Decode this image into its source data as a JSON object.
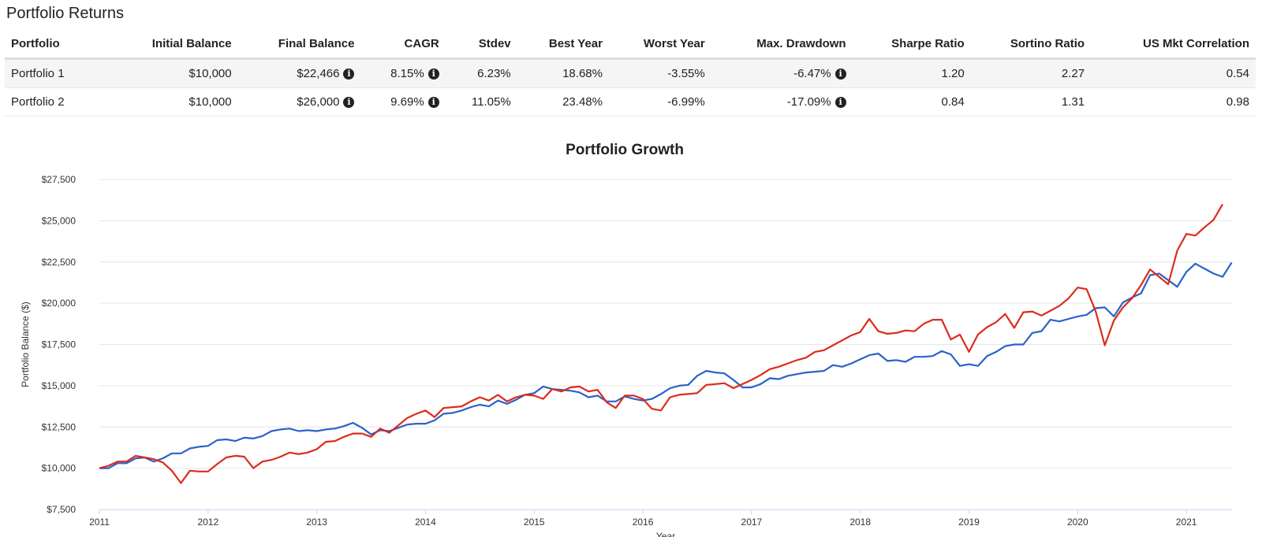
{
  "returns": {
    "title": "Portfolio Returns",
    "columns": [
      "Portfolio",
      "Initial Balance",
      "Final Balance",
      "CAGR",
      "Stdev",
      "Best Year",
      "Worst Year",
      "Max. Drawdown",
      "Sharpe Ratio",
      "Sortino Ratio",
      "US Mkt Correlation"
    ],
    "rows": [
      {
        "portfolio": "Portfolio 1",
        "initial_balance": "$10,000",
        "final_balance": "$22,466",
        "cagr": "8.15%",
        "stdev": "6.23%",
        "best_year": "18.68%",
        "worst_year": "-3.55%",
        "max_drawdown": "-6.47%",
        "sharpe_ratio": "1.20",
        "sortino_ratio": "2.27",
        "us_mkt_correlation": "0.54"
      },
      {
        "portfolio": "Portfolio 2",
        "initial_balance": "$10,000",
        "final_balance": "$26,000",
        "cagr": "9.69%",
        "stdev": "11.05%",
        "best_year": "23.48%",
        "worst_year": "-6.99%",
        "max_drawdown": "-17.09%",
        "sharpe_ratio": "0.84",
        "sortino_ratio": "1.31",
        "us_mkt_correlation": "0.98"
      }
    ],
    "info_icon": "info-circle-icon"
  },
  "chart_data": {
    "type": "line",
    "title": "Portfolio Growth",
    "xlabel": "Year",
    "ylabel": "Portfolio Balance ($)",
    "xlim": [
      2011,
      2021.42
    ],
    "ylim": [
      7500,
      27500
    ],
    "x_ticks": [
      2011,
      2012,
      2013,
      2014,
      2015,
      2016,
      2017,
      2018,
      2019,
      2020,
      2021
    ],
    "y_ticks": [
      7500,
      10000,
      12500,
      15000,
      17500,
      20000,
      22500,
      25000,
      27500
    ],
    "y_tick_labels": [
      "$7,500",
      "$10,000",
      "$12,500",
      "$15,000",
      "$17,500",
      "$20,000",
      "$22,500",
      "$25,000",
      "$27,500"
    ],
    "x_start": 2011,
    "x_step_years": 0.08333,
    "grid": true,
    "series": [
      {
        "color": "#2a62c9",
        "values": [
          10000,
          10000,
          10300,
          10300,
          10600,
          10650,
          10400,
          10600,
          10900,
          10900,
          11200,
          11300,
          11350,
          11700,
          11750,
          11650,
          11850,
          11800,
          11950,
          12250,
          12350,
          12400,
          12250,
          12300,
          12250,
          12350,
          12400,
          12550,
          12750,
          12450,
          12050,
          12300,
          12250,
          12450,
          12650,
          12700,
          12700,
          12900,
          13300,
          13350,
          13500,
          13700,
          13850,
          13750,
          14100,
          13900,
          14150,
          14450,
          14550,
          14950,
          14800,
          14750,
          14700,
          14600,
          14300,
          14400,
          14050,
          14050,
          14350,
          14200,
          14100,
          14200,
          14500,
          14850,
          15000,
          15050,
          15600,
          15900,
          15800,
          15750,
          15350,
          14900,
          14900,
          15100,
          15450,
          15400,
          15600,
          15700,
          15800,
          15850,
          15900,
          16250,
          16150,
          16350,
          16600,
          16850,
          16950,
          16500,
          16550,
          16450,
          16750,
          16750,
          16800,
          17100,
          16900,
          16200,
          16300,
          16200,
          16800,
          17050,
          17400,
          17500,
          17500,
          18200,
          18300,
          19000,
          18900,
          19050,
          19200,
          19300,
          19700,
          19750,
          19200,
          20050,
          20350,
          20600,
          21700,
          21800,
          21400,
          21000,
          21900,
          22400,
          22100,
          21800,
          21600,
          22466
        ]
      },
      {
        "color": "#dd2b1b",
        "values": [
          10000,
          10150,
          10400,
          10400,
          10750,
          10650,
          10550,
          10350,
          9850,
          9100,
          9850,
          9800,
          9800,
          10250,
          10650,
          10750,
          10700,
          10000,
          10400,
          10500,
          10700,
          10950,
          10850,
          10950,
          11150,
          11600,
          11650,
          11900,
          12100,
          12100,
          11900,
          12400,
          12150,
          12600,
          13050,
          13300,
          13500,
          13100,
          13650,
          13700,
          13750,
          14050,
          14300,
          14100,
          14450,
          14050,
          14300,
          14450,
          14400,
          14200,
          14800,
          14650,
          14900,
          14950,
          14650,
          14750,
          14000,
          13650,
          14400,
          14400,
          14200,
          13600,
          13500,
          14300,
          14450,
          14500,
          14550,
          15050,
          15100,
          15150,
          14850,
          15100,
          15350,
          15650,
          16000,
          16150,
          16350,
          16550,
          16700,
          17050,
          17150,
          17450,
          17750,
          18050,
          18250,
          19050,
          18300,
          18150,
          18200,
          18350,
          18300,
          18750,
          19000,
          19000,
          17800,
          18100,
          17050,
          18100,
          18550,
          18850,
          19350,
          18500,
          19450,
          19500,
          19250,
          19550,
          19850,
          20300,
          20950,
          20850,
          19500,
          17450,
          18950,
          19750,
          20300,
          21100,
          22050,
          21600,
          21150,
          23200,
          24200,
          24100,
          24600,
          25050,
          26000
        ]
      }
    ]
  }
}
